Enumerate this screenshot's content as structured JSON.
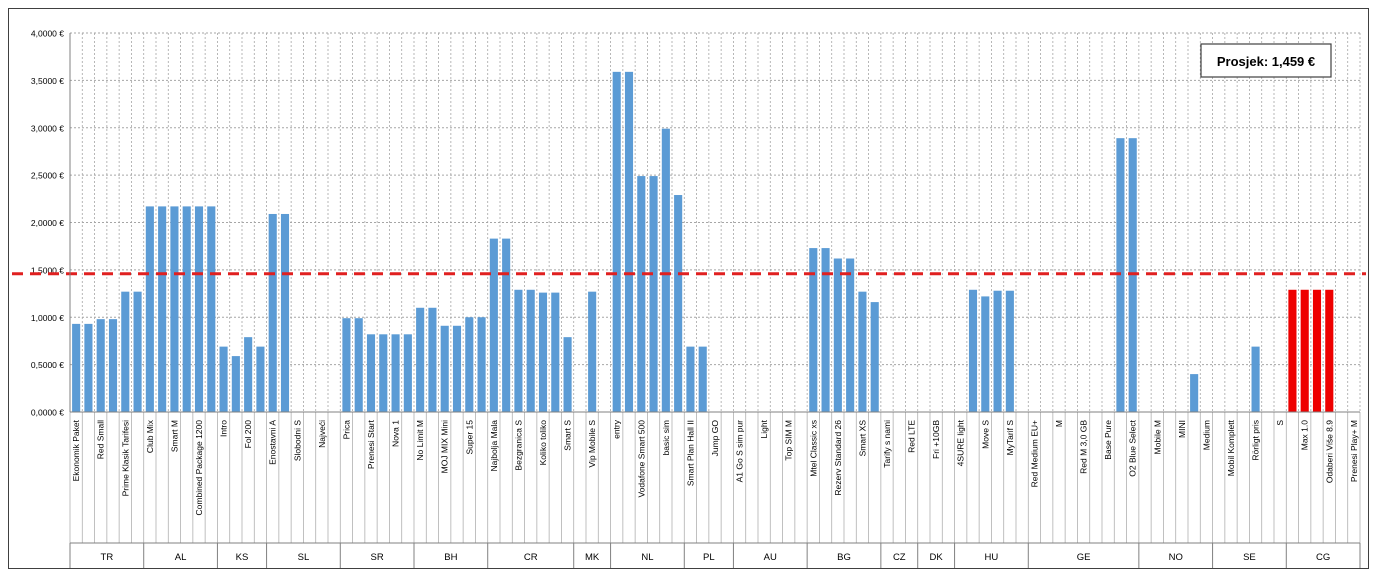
{
  "chart_data": {
    "type": "bar",
    "y_ticks": [
      "0,0000 €",
      "0,5000 €",
      "1,0000 €",
      "1,5000 €",
      "2,0000 €",
      "2,5000 €",
      "3,0000 €",
      "3,5000 €",
      "4,0000 €"
    ],
    "ylim": [
      0,
      4
    ],
    "grid": true,
    "average_value": 1.459,
    "average_label": "Prosjek: 1,459 €",
    "colors": {
      "bar": "#5b9bd5",
      "highlight": "#ee0000",
      "average_line": "#e02020",
      "grid": "#a6a6a6",
      "axis": "#808080"
    },
    "groups": [
      {
        "label": "TR",
        "bars": [
          {
            "label": "Ekonomik Paket",
            "value": 0.93
          },
          {
            "label": "",
            "value": 0.93
          },
          {
            "label": "Red Small",
            "value": 0.98
          },
          {
            "label": "",
            "value": 0.98
          },
          {
            "label": "Prime Klasik Tarifesi",
            "value": 1.27
          },
          {
            "label": "",
            "value": 1.27
          }
        ]
      },
      {
        "label": "AL",
        "bars": [
          {
            "label": "Club Mix",
            "value": 2.17
          },
          {
            "label": "",
            "value": 2.17
          },
          {
            "label": "Smart M",
            "value": 2.17
          },
          {
            "label": "",
            "value": 2.17
          },
          {
            "label": "Combined Package 1200",
            "value": 2.17
          },
          {
            "label": "",
            "value": 2.17
          }
        ]
      },
      {
        "label": "KS",
        "bars": [
          {
            "label": "Intro",
            "value": 0.69
          },
          {
            "label": "",
            "value": 0.59
          },
          {
            "label": "Fol 200",
            "value": 0.79
          },
          {
            "label": "",
            "value": 0.69
          }
        ]
      },
      {
        "label": "SL",
        "bars": [
          {
            "label": "Enostavni A",
            "value": 2.09
          },
          {
            "label": "",
            "value": 2.09
          },
          {
            "label": "Slobodni S",
            "value": 0
          },
          {
            "label": "",
            "value": 0
          },
          {
            "label": "Najveći",
            "value": 0
          },
          {
            "label": "",
            "value": 0
          }
        ]
      },
      {
        "label": "SR",
        "bars": [
          {
            "label": "Prica",
            "value": 0.99
          },
          {
            "label": "",
            "value": 0.99
          },
          {
            "label": "Prenesi Start",
            "value": 0.82
          },
          {
            "label": "",
            "value": 0.82
          },
          {
            "label": "Nova 1",
            "value": 0.82
          },
          {
            "label": "",
            "value": 0.82
          }
        ]
      },
      {
        "label": "BH",
        "bars": [
          {
            "label": "No Limit M",
            "value": 1.1
          },
          {
            "label": "",
            "value": 1.1
          },
          {
            "label": "MOJ MIX Mini",
            "value": 0.91
          },
          {
            "label": "",
            "value": 0.91
          },
          {
            "label": "Super 15",
            "value": 1.0
          },
          {
            "label": "",
            "value": 1.0
          }
        ]
      },
      {
        "label": "CR",
        "bars": [
          {
            "label": "Najbolja Mala",
            "value": 1.83
          },
          {
            "label": "",
            "value": 1.83
          },
          {
            "label": "Bezgranica S",
            "value": 1.29
          },
          {
            "label": "",
            "value": 1.29
          },
          {
            "label": "Koliko toliko",
            "value": 1.26
          },
          {
            "label": "",
            "value": 1.26
          },
          {
            "label": "Smart S",
            "value": 0.79
          }
        ]
      },
      {
        "label": "MK",
        "bars": [
          {
            "label": "",
            "value": 0
          },
          {
            "label": "Vip Mobile S",
            "value": 1.27
          },
          {
            "label": "",
            "value": 0
          }
        ]
      },
      {
        "label": "NL",
        "bars": [
          {
            "label": "entry",
            "value": 3.59
          },
          {
            "label": "",
            "value": 3.59
          },
          {
            "label": "Vodafone Smart 500",
            "value": 2.49
          },
          {
            "label": "",
            "value": 2.49
          },
          {
            "label": "basic sim",
            "value": 2.99
          },
          {
            "label": "",
            "value": 2.29
          }
        ]
      },
      {
        "label": "PL",
        "bars": [
          {
            "label": "Smart Plan Hall II",
            "value": 0.69
          },
          {
            "label": "",
            "value": 0.69
          },
          {
            "label": "Jump GO",
            "value": 0
          },
          {
            "label": "",
            "value": 0
          }
        ]
      },
      {
        "label": "AU",
        "bars": [
          {
            "label": "A1 Go S sim pur",
            "value": 0
          },
          {
            "label": "",
            "value": 0
          },
          {
            "label": "Light",
            "value": 0
          },
          {
            "label": "",
            "value": 0
          },
          {
            "label": "Top SIM M",
            "value": 0
          },
          {
            "label": "",
            "value": 0
          }
        ]
      },
      {
        "label": "BG",
        "bars": [
          {
            "label": "Mtel Classic xs",
            "value": 1.73
          },
          {
            "label": "",
            "value": 1.73
          },
          {
            "label": "Rezerv Standard 26",
            "value": 1.62
          },
          {
            "label": "",
            "value": 1.62
          },
          {
            "label": "Smart XS",
            "value": 1.27
          },
          {
            "label": "",
            "value": 1.16
          }
        ]
      },
      {
        "label": "CZ",
        "bars": [
          {
            "label": "Tarify s nami",
            "value": 0
          },
          {
            "label": "",
            "value": 0
          },
          {
            "label": "Red LTE",
            "value": 0
          }
        ]
      },
      {
        "label": "DK",
        "bars": [
          {
            "label": "",
            "value": 0
          },
          {
            "label": "Fri +10GB",
            "value": 0
          },
          {
            "label": "",
            "value": 0
          }
        ]
      },
      {
        "label": "HU",
        "bars": [
          {
            "label": "4SURE light",
            "value": 0
          },
          {
            "label": "",
            "value": 1.29
          },
          {
            "label": "Move S",
            "value": 1.22
          },
          {
            "label": "",
            "value": 1.28
          },
          {
            "label": "MyTarif S",
            "value": 1.28
          },
          {
            "label": "",
            "value": 0
          }
        ]
      },
      {
        "label": "GE",
        "bars": [
          {
            "label": "Red Medium EU+",
            "value": 0
          },
          {
            "label": "",
            "value": 0
          },
          {
            "label": "M",
            "value": 0
          },
          {
            "label": "",
            "value": 0
          },
          {
            "label": "Red M 3,0 GB",
            "value": 0
          },
          {
            "label": "",
            "value": 0
          },
          {
            "label": "Base Pure",
            "value": 0
          },
          {
            "label": "",
            "value": 2.89
          },
          {
            "label": "O2 Blue Select",
            "value": 2.89
          }
        ]
      },
      {
        "label": "NO",
        "bars": [
          {
            "label": "",
            "value": 0
          },
          {
            "label": "Mobile M",
            "value": 0
          },
          {
            "label": "",
            "value": 0
          },
          {
            "label": "MINI",
            "value": 0
          },
          {
            "label": "",
            "value": 0.4
          },
          {
            "label": "Medium",
            "value": 0
          }
        ]
      },
      {
        "label": "SE",
        "bars": [
          {
            "label": "",
            "value": 0
          },
          {
            "label": "Mobil Komplett",
            "value": 0
          },
          {
            "label": "",
            "value": 0
          },
          {
            "label": "Rörligt pris",
            "value": 0.69
          },
          {
            "label": "",
            "value": 0
          },
          {
            "label": "S",
            "value": 0
          }
        ]
      },
      {
        "label": "CG",
        "bars": [
          {
            "label": "",
            "value": 1.29,
            "highlight": true
          },
          {
            "label": "Max 1.0",
            "value": 1.29,
            "highlight": true
          },
          {
            "label": "",
            "value": 1.29,
            "highlight": true
          },
          {
            "label": "Odaberi Više 8.9",
            "value": 1.29,
            "highlight": true
          },
          {
            "label": "",
            "value": 0
          },
          {
            "label": "Prenesi Play+ M",
            "value": 0
          }
        ]
      }
    ]
  }
}
